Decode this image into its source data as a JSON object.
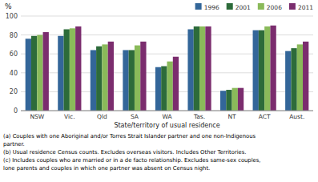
{
  "chart_data": {
    "type": "bar",
    "ylabel": "%",
    "xlabel": "State/territory of usual residence",
    "categories": [
      "NSW",
      "Vic.",
      "Qld",
      "SA",
      "WA",
      "Tas.",
      "NT",
      "ACT",
      "Aust."
    ],
    "series": [
      {
        "name": "1996",
        "color": "#336699",
        "values": [
          76,
          79,
          64,
          64,
          46,
          86,
          21,
          85,
          63
        ]
      },
      {
        "name": "2001",
        "color": "#2d6b3a",
        "values": [
          79,
          86,
          68,
          64,
          47,
          89,
          22,
          85,
          66
        ]
      },
      {
        "name": "2006",
        "color": "#8aba5a",
        "values": [
          80,
          87,
          70,
          69,
          52,
          89,
          24,
          89,
          70
        ]
      },
      {
        "name": "2011",
        "color": "#7b2d6e",
        "values": [
          83,
          89,
          73,
          73,
          57,
          89,
          24,
          90,
          73
        ]
      }
    ],
    "ylim": [
      0,
      100
    ],
    "yticks": [
      0,
      20,
      40,
      60,
      80,
      100
    ],
    "grid": true,
    "legend": "upper right",
    "annotations": [
      "(a) Couples with one Aboriginal and/or Torres Strait Islander partner and one non-Indigenous",
      " partner.",
      "(b) Usual residence Census counts.  Excludes overseas visitors.  Includes Other Territories.",
      "(c) Includes couples who are married or in a de facto relationship.  Excludes same-sex couples,",
      "lone parents and couples in which one partner was absent on Census night."
    ]
  }
}
